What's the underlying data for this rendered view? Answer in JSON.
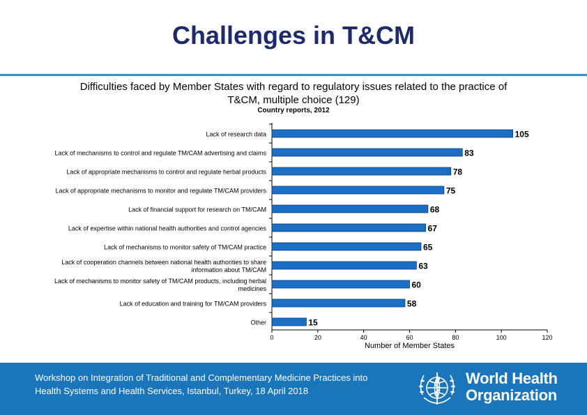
{
  "slide": {
    "title": "Challenges in T&CM"
  },
  "chart_data": {
    "type": "bar",
    "orientation": "horizontal",
    "title": "Difficulties faced by Member States with regard to regulatory issues related to the practice of T&CM, multiple choice (129)",
    "subtitle": "Country reports,  2012",
    "xlabel": "Number of Member States",
    "ylabel": "",
    "xlim": [
      0,
      120
    ],
    "xticks": [
      0,
      20,
      40,
      60,
      80,
      100,
      120
    ],
    "grid": false,
    "bar_color": "#1a6fc4",
    "categories": [
      [
        "Lack of research data"
      ],
      [
        "Lack of mechanisms to control and regulate TM/CAM advertising and claims"
      ],
      [
        "Lack of appropriate mechanisms to control and regulate herbal products"
      ],
      [
        "Lack of appropriate mechanisms to monitor and regulate TM/CAM providers"
      ],
      [
        "Lack of financial support for research on TM/CAM"
      ],
      [
        "Lack of expertise within national health authorities and control agencies"
      ],
      [
        "Lack of mechanisms to monitor safety of TM/CAM practice"
      ],
      [
        "Lack of cooperation channels between national health authorities to share",
        "information about TM/CAM"
      ],
      [
        "Lack of mechanisms to monitor safety of TM/CAM products, including herbal",
        "medicines"
      ],
      [
        "Lack of education and training for TM/CAM providers"
      ],
      [
        "Other"
      ]
    ],
    "values": [
      105,
      83,
      78,
      75,
      68,
      67,
      65,
      63,
      60,
      58,
      15
    ]
  },
  "footer": {
    "text": "Workshop on Integration of Traditional and Complementary Medicine Practices into Health Systems and Health Services, Istanbul, Turkey, 18 April 2018",
    "logo_line1": "World Health",
    "logo_line2": "Organization",
    "background": "#1b75bb"
  }
}
